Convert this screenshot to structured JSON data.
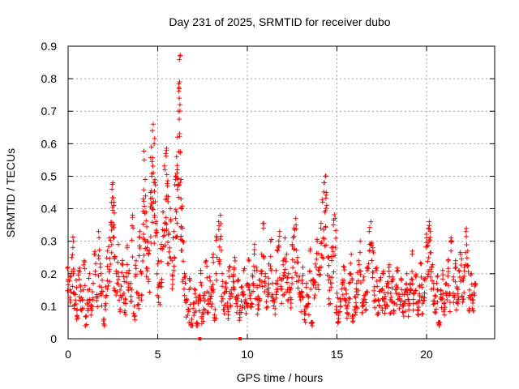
{
  "chart_data": {
    "type": "scatter",
    "title": "Day 231 of 2025, SRMTID for receiver dubo",
    "xlabel": "GPS time / hours",
    "ylabel": "SRMTID / TECUs",
    "xlim": [
      0,
      23.8
    ],
    "ylim": [
      0,
      0.9
    ],
    "xticks": [
      0,
      5,
      10,
      15,
      20
    ],
    "xtick_labels": [
      "0",
      "5",
      "10",
      "15",
      "20"
    ],
    "yticks": [
      0,
      0.1,
      0.2,
      0.3,
      0.4,
      0.5,
      0.6,
      0.7,
      0.8,
      0.9
    ],
    "ytick_labels": [
      "0",
      "0.1",
      "0.2",
      "0.3",
      "0.4",
      "0.5",
      "0.6",
      "0.7",
      "0.8",
      "0.9"
    ],
    "grid": true,
    "marker": "+",
    "color": "#ff0000",
    "series": [
      {
        "name": "SRMTID",
        "points": [
          [
            0.0,
            0.22
          ],
          [
            0.1,
            0.19
          ],
          [
            0.2,
            0.25
          ],
          [
            0.3,
            0.3
          ],
          [
            0.35,
            0.14
          ],
          [
            0.45,
            0.18
          ],
          [
            0.5,
            0.09
          ],
          [
            0.6,
            0.21
          ],
          [
            0.7,
            0.16
          ],
          [
            0.8,
            0.12
          ],
          [
            0.9,
            0.24
          ],
          [
            1.0,
            0.07
          ],
          [
            1.1,
            0.15
          ],
          [
            1.2,
            0.2
          ],
          [
            1.3,
            0.1
          ],
          [
            1.4,
            0.17
          ],
          [
            1.5,
            0.26
          ],
          [
            1.6,
            0.13
          ],
          [
            1.7,
            0.33
          ],
          [
            1.8,
            0.22
          ],
          [
            1.9,
            0.18
          ],
          [
            2.0,
            0.06
          ],
          [
            2.1,
            0.16
          ],
          [
            2.2,
            0.27
          ],
          [
            2.3,
            0.31
          ],
          [
            2.4,
            0.35
          ],
          [
            2.45,
            0.46
          ],
          [
            2.5,
            0.48
          ],
          [
            2.55,
            0.42
          ],
          [
            2.6,
            0.25
          ],
          [
            2.7,
            0.2
          ],
          [
            2.8,
            0.29
          ],
          [
            2.9,
            0.15
          ],
          [
            3.0,
            0.23
          ],
          [
            3.1,
            0.19
          ],
          [
            3.2,
            0.12
          ],
          [
            3.3,
            0.28
          ],
          [
            3.4,
            0.21
          ],
          [
            3.5,
            0.17
          ],
          [
            3.6,
            0.38
          ],
          [
            3.7,
            0.1
          ],
          [
            3.8,
            0.24
          ],
          [
            3.9,
            0.14
          ],
          [
            4.0,
            0.33
          ],
          [
            4.1,
            0.2
          ],
          [
            4.2,
            0.43
          ],
          [
            4.25,
            0.55
          ],
          [
            4.3,
            0.49
          ],
          [
            4.35,
            0.39
          ],
          [
            4.4,
            0.3
          ],
          [
            4.5,
            0.26
          ],
          [
            4.6,
            0.45
          ],
          [
            4.65,
            0.59
          ],
          [
            4.7,
            0.64
          ],
          [
            4.75,
            0.66
          ],
          [
            4.8,
            0.6
          ],
          [
            4.85,
            0.48
          ],
          [
            4.9,
            0.36
          ],
          [
            5.0,
            0.23
          ],
          [
            5.1,
            0.17
          ],
          [
            5.2,
            0.29
          ],
          [
            5.3,
            0.39
          ],
          [
            5.4,
            0.52
          ],
          [
            5.45,
            0.57
          ],
          [
            5.5,
            0.58
          ],
          [
            5.55,
            0.47
          ],
          [
            5.6,
            0.32
          ],
          [
            5.7,
            0.4
          ],
          [
            5.8,
            0.24
          ],
          [
            5.9,
            0.33
          ],
          [
            6.0,
            0.49
          ],
          [
            6.05,
            0.56
          ],
          [
            6.1,
            0.62
          ],
          [
            6.15,
            0.7
          ],
          [
            6.2,
            0.74
          ],
          [
            6.22,
            0.79
          ],
          [
            6.25,
            0.87
          ],
          [
            6.3,
            0.49
          ],
          [
            6.35,
            0.4
          ],
          [
            6.4,
            0.3
          ],
          [
            6.5,
            0.2
          ],
          [
            6.6,
            0.12
          ],
          [
            6.7,
            0.09
          ],
          [
            6.8,
            0.18
          ],
          [
            6.9,
            0.06
          ],
          [
            7.0,
            0.11
          ],
          [
            7.1,
            0.15
          ],
          [
            7.2,
            0.05
          ],
          [
            7.3,
            0.13
          ],
          [
            7.4,
            0.21
          ],
          [
            7.5,
            0.08
          ],
          [
            7.6,
            0.14
          ],
          [
            7.7,
            0.24
          ],
          [
            7.8,
            0.12
          ],
          [
            7.9,
            0.19
          ],
          [
            8.0,
            0.16
          ],
          [
            8.1,
            0.26
          ],
          [
            8.2,
            0.09
          ],
          [
            8.3,
            0.31
          ],
          [
            8.4,
            0.36
          ],
          [
            8.5,
            0.38
          ],
          [
            8.6,
            0.2
          ],
          [
            8.7,
            0.14
          ],
          [
            8.8,
            0.17
          ],
          [
            8.9,
            0.11
          ],
          [
            9.0,
            0.22
          ],
          [
            9.1,
            0.15
          ],
          [
            9.2,
            0.19
          ],
          [
            9.3,
            0.25
          ],
          [
            9.4,
            0.13
          ],
          [
            9.5,
            0.18
          ],
          [
            9.6,
            0.1
          ],
          [
            9.7,
            0.16
          ],
          [
            9.8,
            0.21
          ],
          [
            9.9,
            0.12
          ],
          [
            10.0,
            0.17
          ],
          [
            10.1,
            0.24
          ],
          [
            10.2,
            0.14
          ],
          [
            10.3,
            0.19
          ],
          [
            10.4,
            0.29
          ],
          [
            10.5,
            0.22
          ],
          [
            10.6,
            0.13
          ],
          [
            10.7,
            0.18
          ],
          [
            10.8,
            0.26
          ],
          [
            10.9,
            0.34
          ],
          [
            11.0,
            0.2
          ],
          [
            11.1,
            0.15
          ],
          [
            11.2,
            0.23
          ],
          [
            11.3,
            0.3
          ],
          [
            11.4,
            0.17
          ],
          [
            11.5,
            0.12
          ],
          [
            11.6,
            0.21
          ],
          [
            11.7,
            0.27
          ],
          [
            11.8,
            0.33
          ],
          [
            11.9,
            0.18
          ],
          [
            12.0,
            0.24
          ],
          [
            12.1,
            0.31
          ],
          [
            12.2,
            0.26
          ],
          [
            12.3,
            0.2
          ],
          [
            12.4,
            0.15
          ],
          [
            12.5,
            0.29
          ],
          [
            12.6,
            0.34
          ],
          [
            12.7,
            0.37
          ],
          [
            12.8,
            0.25
          ],
          [
            12.9,
            0.19
          ],
          [
            13.0,
            0.14
          ],
          [
            13.1,
            0.22
          ],
          [
            13.2,
            0.09
          ],
          [
            13.3,
            0.17
          ],
          [
            13.4,
            0.13
          ],
          [
            13.5,
            0.27
          ],
          [
            13.6,
            0.05
          ],
          [
            13.7,
            0.18
          ],
          [
            13.8,
            0.23
          ],
          [
            13.9,
            0.3
          ],
          [
            14.0,
            0.21
          ],
          [
            14.1,
            0.34
          ],
          [
            14.2,
            0.42
          ],
          [
            14.3,
            0.48
          ],
          [
            14.35,
            0.5
          ],
          [
            14.4,
            0.45
          ],
          [
            14.5,
            0.25
          ],
          [
            14.6,
            0.19
          ],
          [
            14.7,
            0.28
          ],
          [
            14.8,
            0.35
          ],
          [
            14.9,
            0.37
          ],
          [
            15.0,
            0.14
          ],
          [
            15.1,
            0.08
          ],
          [
            15.2,
            0.12
          ],
          [
            15.3,
            0.18
          ],
          [
            15.4,
            0.22
          ],
          [
            15.5,
            0.15
          ],
          [
            15.6,
            0.1
          ],
          [
            15.7,
            0.2
          ],
          [
            15.8,
            0.26
          ],
          [
            15.9,
            0.07
          ],
          [
            16.0,
            0.13
          ],
          [
            16.1,
            0.17
          ],
          [
            16.2,
            0.24
          ],
          [
            16.3,
            0.3
          ],
          [
            16.4,
            0.11
          ],
          [
            16.5,
            0.19
          ],
          [
            16.6,
            0.14
          ],
          [
            16.7,
            0.22
          ],
          [
            16.8,
            0.33
          ],
          [
            16.9,
            0.36
          ],
          [
            17.0,
            0.28
          ],
          [
            17.1,
            0.16
          ],
          [
            17.2,
            0.21
          ],
          [
            17.3,
            0.12
          ],
          [
            17.4,
            0.18
          ],
          [
            17.5,
            0.15
          ],
          [
            17.6,
            0.2
          ],
          [
            17.7,
            0.13
          ],
          [
            17.8,
            0.17
          ],
          [
            17.9,
            0.22
          ],
          [
            18.0,
            0.14
          ],
          [
            18.1,
            0.19
          ],
          [
            18.2,
            0.11
          ],
          [
            18.3,
            0.16
          ],
          [
            18.4,
            0.21
          ],
          [
            18.5,
            0.13
          ],
          [
            18.6,
            0.18
          ],
          [
            18.7,
            0.1
          ],
          [
            18.8,
            0.15
          ],
          [
            18.9,
            0.2
          ],
          [
            19.0,
            0.12
          ],
          [
            19.1,
            0.17
          ],
          [
            19.2,
            0.26
          ],
          [
            19.3,
            0.14
          ],
          [
            19.4,
            0.19
          ],
          [
            19.5,
            0.11
          ],
          [
            19.6,
            0.16
          ],
          [
            19.7,
            0.23
          ],
          [
            19.8,
            0.13
          ],
          [
            19.9,
            0.18
          ],
          [
            20.0,
            0.31
          ],
          [
            20.1,
            0.34
          ],
          [
            20.15,
            0.36
          ],
          [
            20.2,
            0.33
          ],
          [
            20.3,
            0.22
          ],
          [
            20.4,
            0.17
          ],
          [
            20.5,
            0.13
          ],
          [
            20.6,
            0.19
          ],
          [
            20.7,
            0.05
          ],
          [
            20.8,
            0.15
          ],
          [
            20.9,
            0.21
          ],
          [
            21.0,
            0.11
          ],
          [
            21.1,
            0.17
          ],
          [
            21.2,
            0.24
          ],
          [
            21.3,
            0.14
          ],
          [
            21.4,
            0.3
          ],
          [
            21.5,
            0.19
          ],
          [
            21.6,
            0.23
          ],
          [
            21.7,
            0.16
          ],
          [
            21.8,
            0.21
          ],
          [
            21.9,
            0.26
          ],
          [
            22.0,
            0.18
          ],
          [
            22.1,
            0.22
          ],
          [
            22.2,
            0.33
          ],
          [
            22.3,
            0.27
          ],
          [
            22.4,
            0.15
          ],
          [
            22.5,
            0.2
          ],
          [
            22.6,
            0.12
          ],
          [
            22.7,
            0.17
          ]
        ]
      }
    ]
  }
}
